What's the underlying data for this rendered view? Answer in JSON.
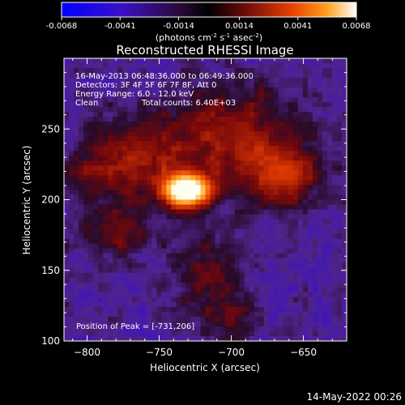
{
  "chart_data": {
    "type": "heatmap",
    "title": "Reconstructed RHESSI Image",
    "colorbar": {
      "ticks": [
        "-0.0068",
        "-0.0041",
        "-0.0014",
        "0.0014",
        "0.0041",
        "0.0068"
      ],
      "unit_label": "(photons cm",
      "unit_exp1": "-2",
      "unit_mid": " s",
      "unit_exp2": "-1",
      "unit_mid2": " asec",
      "unit_exp3": "-2",
      "unit_end": ")",
      "range": [
        -0.0068,
        0.0068
      ]
    },
    "xlabel": "Heliocentric X (arcsec)",
    "ylabel": "Heliocentric Y (arcsec)",
    "xlim": [
      -816,
      -620
    ],
    "ylim": [
      100,
      300
    ],
    "xticks": [
      -800,
      -750,
      -700,
      -650
    ],
    "yticks": [
      100,
      150,
      200,
      250
    ],
    "annotations": [
      "16-May-2013 06:48:36.000 to 06:49:36.000",
      "Detectors: 3F 4F 5F 6F 7F 8F, Att 0",
      "Energy Range: 6.0 - 12.0 keV",
      "Clean",
      "Total counts: 6.40E+03"
    ],
    "peak_label": "Position of Peak = [-731,206]",
    "peak": [
      -731,
      206
    ],
    "colors": {
      "background": "#4a1c6e",
      "peak": "#fffde0"
    },
    "sources": [
      {
        "x": -731,
        "y": 206,
        "sx": 13,
        "sy": 9,
        "amp": 1.0
      },
      {
        "x": -770,
        "y": 228,
        "sx": 22,
        "sy": 20,
        "amp": 0.42
      },
      {
        "x": -700,
        "y": 244,
        "sx": 35,
        "sy": 26,
        "amp": 0.46
      },
      {
        "x": -662,
        "y": 216,
        "sx": 18,
        "sy": 16,
        "amp": 0.4
      },
      {
        "x": -780,
        "y": 176,
        "sx": 18,
        "sy": 12,
        "amp": 0.36
      },
      {
        "x": -717,
        "y": 148,
        "sx": 16,
        "sy": 22,
        "amp": 0.3
      },
      {
        "x": -700,
        "y": 116,
        "sx": 14,
        "sy": 14,
        "amp": 0.22
      },
      {
        "x": -805,
        "y": 218,
        "sx": 12,
        "sy": 12,
        "amp": 0.25
      }
    ]
  },
  "footer": {
    "date": "14-May-2022 00:26"
  }
}
